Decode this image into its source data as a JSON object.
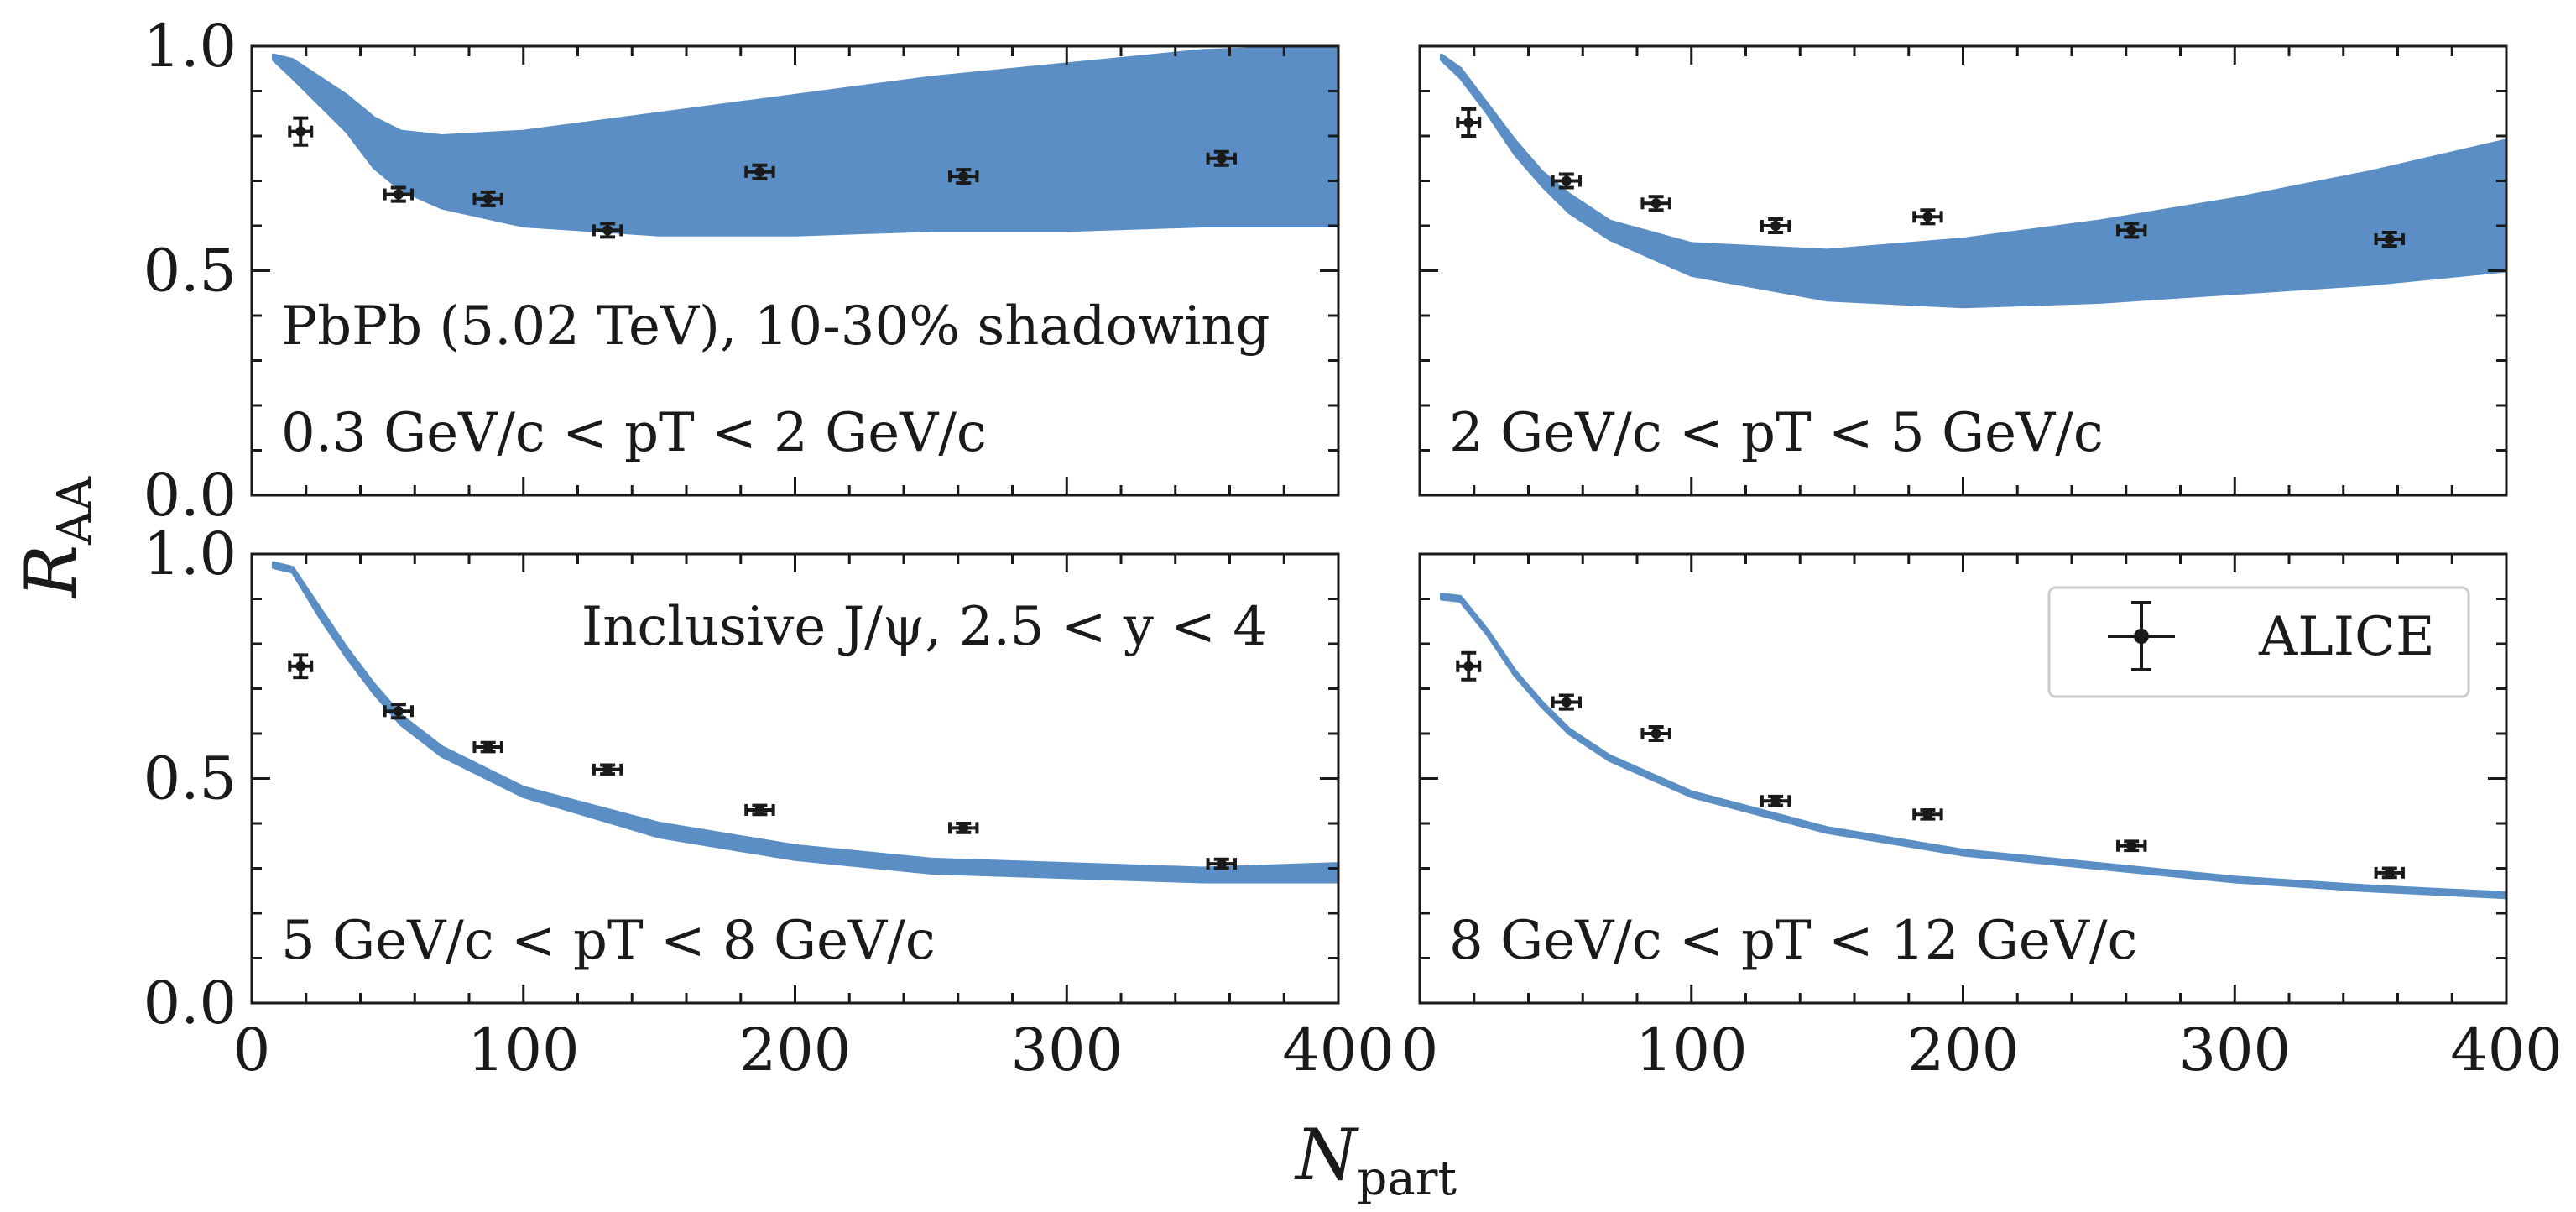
{
  "chart_data": {
    "type": "multi-panel-errorbar-band",
    "xlabel_main": "N",
    "xlabel_sub": "part",
    "ylabel_main": "R",
    "ylabel_sub": "AA",
    "xlim": [
      0,
      400
    ],
    "ylim": [
      0.0,
      1.0
    ],
    "xticks": [
      0,
      100,
      200,
      300,
      400
    ],
    "xtick_labels": [
      "0",
      "100",
      "200",
      "300",
      "400"
    ],
    "yticks": [
      0.0,
      0.5,
      1.0
    ],
    "ytick_labels": [
      "0.0",
      "0.5",
      "1.0"
    ],
    "panel_texts": {
      "collision": "PbPb (5.02 TeV), 10-30% shadowing",
      "probe": "Inclusive J/ψ,  2.5 < y < 4"
    },
    "legend": {
      "label": "ALICE",
      "placement": "upper-right of bottom-right panel"
    },
    "band_color": "#5b8ec4",
    "marker_color": "#1a1a1a",
    "panels": [
      {
        "pt_label": "0.3 GeV/c < pT < 2 GeV/c",
        "data_x": [
          18,
          54,
          87,
          131,
          187,
          262,
          357
        ],
        "data_y": [
          0.81,
          0.67,
          0.66,
          0.59,
          0.72,
          0.71,
          0.75
        ],
        "yerr": [
          0.03,
          0.015,
          0.015,
          0.015,
          0.015,
          0.015,
          0.015
        ],
        "xerr": [
          4,
          5,
          5,
          5,
          5,
          5,
          5
        ],
        "band_x": [
          8,
          15,
          25,
          35,
          45,
          55,
          70,
          100,
          150,
          200,
          250,
          300,
          350,
          400
        ],
        "band_upper": [
          0.98,
          0.97,
          0.93,
          0.89,
          0.84,
          0.81,
          0.8,
          0.81,
          0.85,
          0.89,
          0.93,
          0.96,
          0.99,
          1.0
        ],
        "band_lower": [
          0.97,
          0.93,
          0.87,
          0.81,
          0.73,
          0.68,
          0.64,
          0.6,
          0.58,
          0.58,
          0.59,
          0.59,
          0.6,
          0.6
        ]
      },
      {
        "pt_label": "2 GeV/c < pT < 5 GeV/c",
        "data_x": [
          18,
          54,
          87,
          131,
          187,
          262,
          357
        ],
        "data_y": [
          0.83,
          0.7,
          0.65,
          0.6,
          0.62,
          0.59,
          0.57
        ],
        "yerr": [
          0.03,
          0.015,
          0.015,
          0.015,
          0.015,
          0.015,
          0.015
        ],
        "xerr": [
          4,
          5,
          5,
          5,
          5,
          5,
          5
        ],
        "band_x": [
          8,
          15,
          25,
          35,
          45,
          55,
          70,
          100,
          150,
          200,
          250,
          300,
          350,
          400
        ],
        "band_upper": [
          0.98,
          0.95,
          0.87,
          0.79,
          0.72,
          0.67,
          0.61,
          0.56,
          0.545,
          0.57,
          0.61,
          0.66,
          0.72,
          0.79
        ],
        "band_lower": [
          0.97,
          0.93,
          0.85,
          0.76,
          0.69,
          0.63,
          0.57,
          0.49,
          0.435,
          0.42,
          0.43,
          0.45,
          0.47,
          0.5
        ]
      },
      {
        "pt_label": "5 GeV/c < pT < 8 GeV/c",
        "data_x": [
          18,
          54,
          87,
          131,
          187,
          262,
          357
        ],
        "data_y": [
          0.75,
          0.65,
          0.57,
          0.52,
          0.43,
          0.39,
          0.31
        ],
        "yerr": [
          0.025,
          0.015,
          0.01,
          0.01,
          0.01,
          0.01,
          0.01
        ],
        "xerr": [
          4,
          5,
          5,
          5,
          5,
          5,
          5
        ],
        "band_x": [
          8,
          15,
          25,
          35,
          45,
          55,
          70,
          100,
          150,
          200,
          250,
          300,
          350,
          400
        ],
        "band_upper": [
          0.98,
          0.97,
          0.88,
          0.79,
          0.71,
          0.64,
          0.57,
          0.48,
          0.4,
          0.35,
          0.32,
          0.31,
          0.3,
          0.31
        ],
        "band_lower": [
          0.97,
          0.96,
          0.86,
          0.77,
          0.69,
          0.62,
          0.55,
          0.46,
          0.37,
          0.32,
          0.29,
          0.28,
          0.27,
          0.27
        ]
      },
      {
        "pt_label": "8 GeV/c < pT < 12 GeV/c",
        "data_x": [
          18,
          54,
          87,
          131,
          187,
          262,
          357
        ],
        "data_y": [
          0.75,
          0.67,
          0.6,
          0.45,
          0.42,
          0.35,
          0.29
        ],
        "yerr": [
          0.03,
          0.015,
          0.015,
          0.01,
          0.01,
          0.01,
          0.01
        ],
        "xerr": [
          4,
          5,
          5,
          5,
          5,
          5,
          5
        ],
        "band_x": [
          8,
          15,
          25,
          35,
          45,
          55,
          70,
          100,
          150,
          200,
          250,
          300,
          350,
          400
        ],
        "band_upper": [
          0.91,
          0.905,
          0.83,
          0.74,
          0.67,
          0.61,
          0.55,
          0.47,
          0.39,
          0.34,
          0.31,
          0.28,
          0.26,
          0.245
        ],
        "band_lower": [
          0.9,
          0.895,
          0.82,
          0.73,
          0.66,
          0.6,
          0.54,
          0.46,
          0.38,
          0.33,
          0.3,
          0.27,
          0.25,
          0.235
        ]
      }
    ]
  }
}
